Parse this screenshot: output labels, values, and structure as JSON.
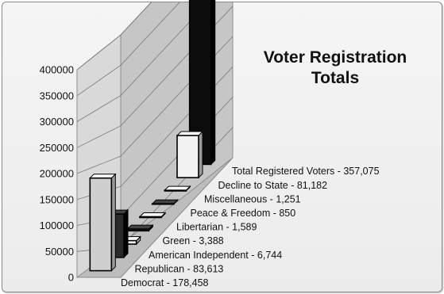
{
  "chart_data": {
    "type": "bar",
    "title_lines": [
      "Voter Registration",
      "Totals"
    ],
    "categories": [
      "Democrat - 178,458",
      "Republican - 83,613",
      "American Independent - 6,744",
      "Green - 3,388",
      "Libertarian - 1,589",
      "Peace & Freedom - 850",
      "Miscellaneous - 1,251",
      "Decline to State - 81,182",
      "Total Registered Voters - 357,075"
    ],
    "values": [
      178458,
      83613,
      6744,
      3388,
      1589,
      850,
      1251,
      81182,
      357075
    ],
    "ylim": [
      0,
      400000
    ],
    "y_ticks": [
      "0",
      "50000",
      "100000",
      "150000",
      "200000",
      "250000",
      "300000",
      "350000",
      "400000"
    ],
    "grid": true,
    "legend": "none",
    "three_d": true,
    "colors": {
      "light_bar": "#cfcfcf",
      "white_bar": "#f2f2f2",
      "dark_bar": "#2a2a2a",
      "black_bar": "#0c0c0c",
      "wall": "#c6c6c6",
      "gridline": "#7a7a7a"
    },
    "bar_color_keys": [
      "light_bar",
      "dark_bar",
      "white_bar",
      "dark_bar",
      "white_bar",
      "dark_bar",
      "white_bar",
      "white_bar",
      "black_bar"
    ]
  }
}
